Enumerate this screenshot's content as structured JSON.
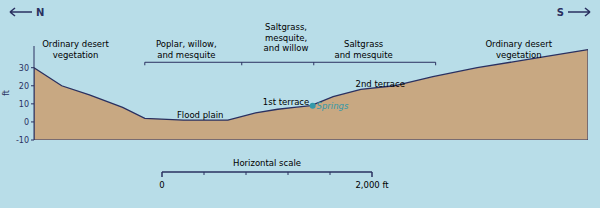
{
  "chart_data": {
    "type": "area",
    "x": [
      0.0,
      0.05,
      0.1,
      0.16,
      0.2,
      0.27,
      0.35,
      0.4,
      0.44,
      0.47,
      0.5,
      0.54,
      0.59,
      0.65,
      0.72,
      0.8,
      0.9,
      1.0
    ],
    "values": [
      30,
      20,
      15,
      8,
      2,
      1,
      1,
      5,
      7,
      8,
      9,
      14,
      18,
      20,
      25,
      30,
      35,
      40
    ],
    "color": "#c8a882",
    "xlim": [
      0,
      1
    ],
    "ylim": [
      -10,
      42
    ],
    "yticks": [
      -10,
      0,
      10,
      20,
      30
    ],
    "ylabel": "ft",
    "tick_labels": "y",
    "points": [
      {
        "x": 0.503,
        "y": 9,
        "color": "#3399aa"
      }
    ],
    "annotations": [
      {
        "text": "Ordinary desert\nvegetation",
        "x": 0.075,
        "y": 34.5
      },
      {
        "text": "Poplar, willow,\nand mesquite",
        "x": 0.275,
        "y": 34.5
      },
      {
        "text": "Saltgrass,\nmesquite,\nand willow",
        "x": 0.455,
        "y": 38
      },
      {
        "text": "Saltgrass\nand mesquite",
        "x": 0.595,
        "y": 34.5
      },
      {
        "text": "Ordinary desert\nvegetation",
        "x": 0.875,
        "y": 34.5
      }
    ],
    "terrain_labels": [
      {
        "text": "Flood plain",
        "x": 0.3,
        "y": 4,
        "align": "center"
      },
      {
        "text": "1st terrace",
        "x": 0.455,
        "y": 11,
        "align": "center"
      },
      {
        "text": "2nd terrace",
        "x": 0.625,
        "y": 21,
        "align": "center"
      },
      {
        "text": "Springs",
        "x": 0.51,
        "y": 9,
        "align": "left",
        "style": "italic",
        "color": "#3399aa"
      }
    ],
    "bracket": {
      "x": [
        0.2,
        0.375,
        0.505,
        0.725
      ],
      "y": 33
    },
    "directions": [
      "N",
      "S"
    ],
    "scale_bar": {
      "title": "Horizontal scale",
      "ticks": [
        {
          "value": 0,
          "label": "0"
        },
        {
          "value": 2000,
          "label": "2,000 ft"
        }
      ],
      "divisions": 5
    }
  }
}
